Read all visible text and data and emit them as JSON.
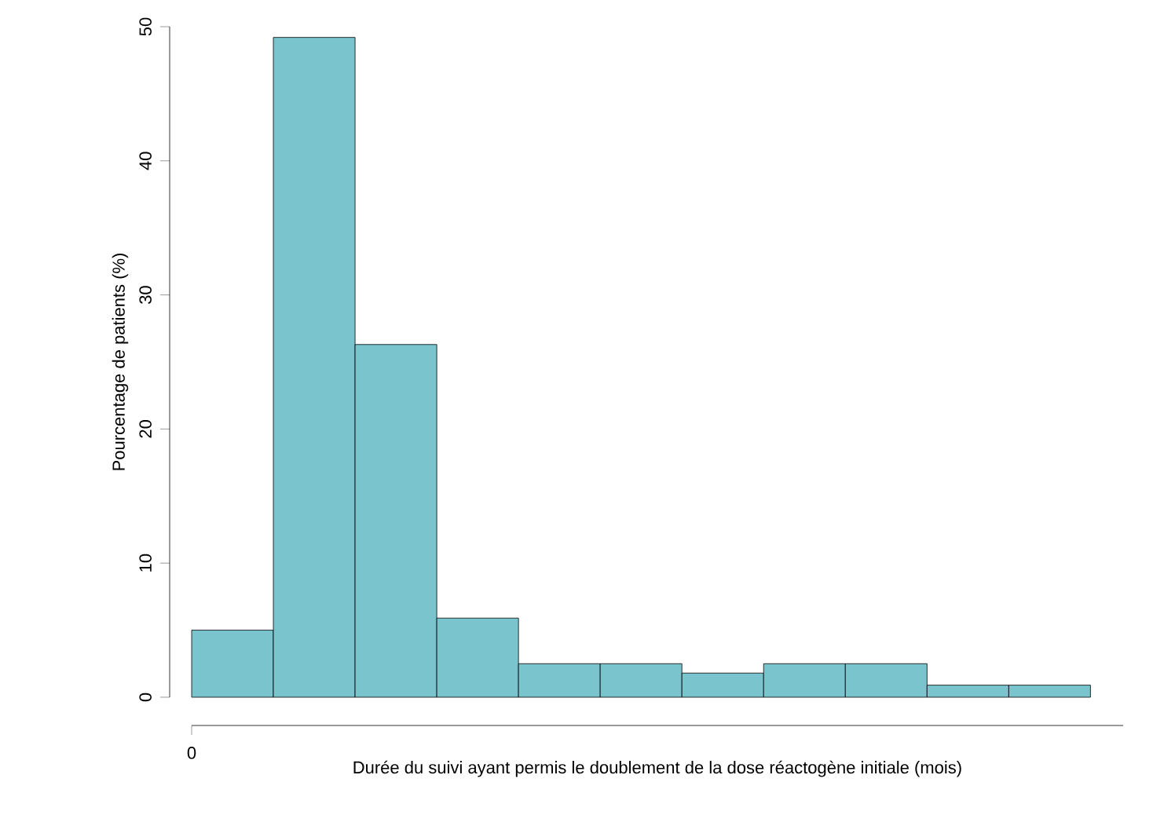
{
  "chart_data": {
    "type": "bar",
    "xlabel": "Durée du suivi ayant permis le doublement de la dose réactogène initiale (mois)",
    "ylabel": "Pourcentage de patients (%)",
    "categories": [
      null,
      null,
      null,
      null,
      null,
      null,
      null,
      null,
      null,
      null,
      null
    ],
    "values": [
      5.0,
      49.2,
      26.3,
      5.9,
      2.5,
      2.5,
      1.8,
      2.5,
      2.5,
      0.9,
      0.9
    ],
    "color": "#7ac5cd",
    "ylim": [
      0,
      50
    ],
    "yticks": [
      0,
      10,
      20,
      30,
      40,
      50
    ],
    "annotations": [
      "0"
    ],
    "grid": false
  }
}
